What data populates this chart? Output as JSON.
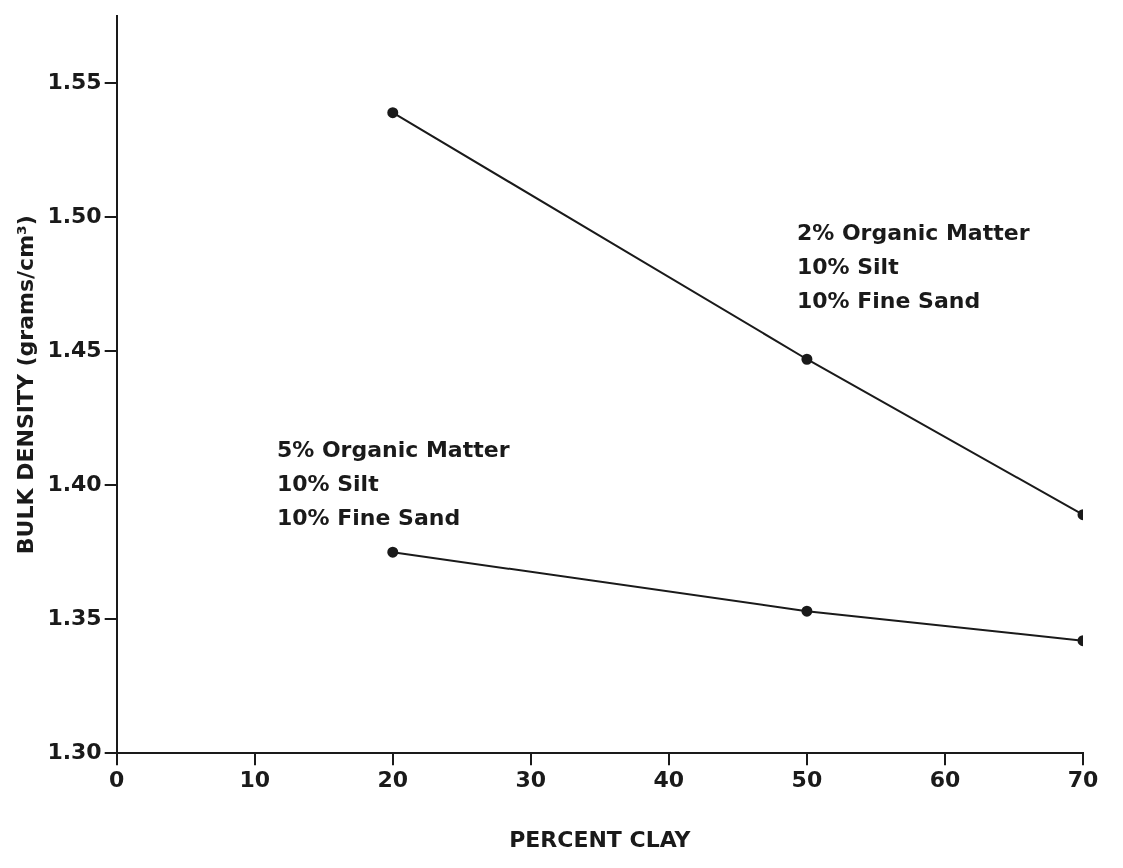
{
  "chart_data": {
    "type": "line",
    "xlabel": "PERCENT CLAY",
    "ylabel": "BULK DENSITY (grams/cm³)",
    "x": [
      20,
      50,
      70
    ],
    "series": [
      {
        "name": "2% Organic Matter\n10% Silt\n10% Fine Sand",
        "color": "#1a1a1a",
        "values": [
          1.539,
          1.447,
          1.389
        ]
      },
      {
        "name": "5% Organic Matter\n10% Silt\n10% Fine Sand",
        "color": "#1a1a1a",
        "values": [
          1.375,
          1.353,
          1.342
        ]
      }
    ],
    "xlim": [
      0,
      70
    ],
    "xticks": [
      0,
      10,
      20,
      30,
      40,
      50,
      60,
      70
    ],
    "ylim": [
      1.3,
      1.575
    ],
    "yticks": [
      {
        "value": 1.3,
        "label": "1.30"
      },
      1.35,
      {
        "value": 1.4,
        "label": "1.40"
      },
      1.45,
      {
        "value": 1.5,
        "label": "1.50"
      },
      1.55
    ],
    "grid": false,
    "legend": false,
    "marker": "circle",
    "line_style": "solid"
  }
}
